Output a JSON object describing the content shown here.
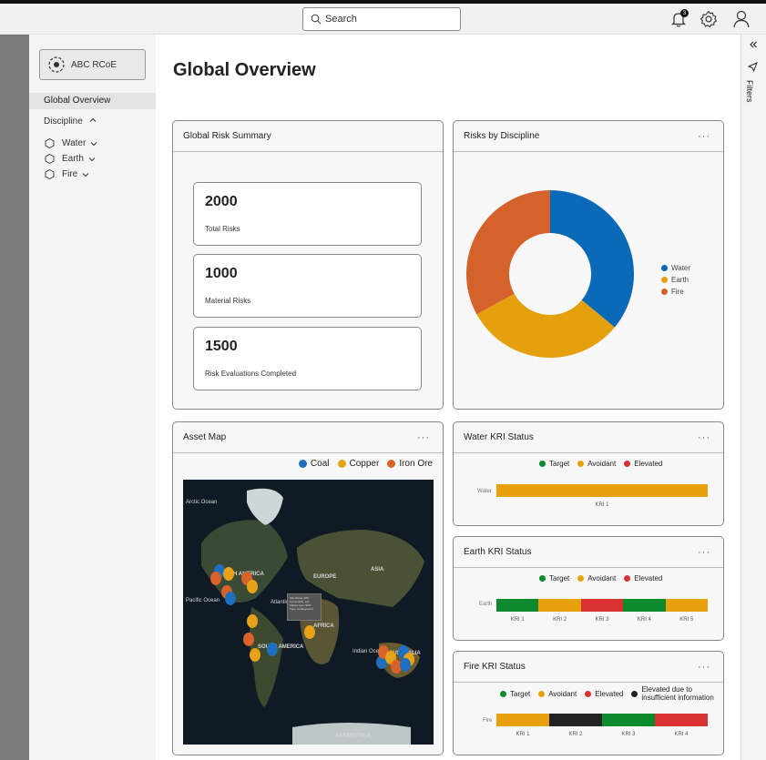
{
  "search": {
    "placeholder": "Search"
  },
  "notifications": {
    "count": "3"
  },
  "brand": {
    "label": "ABC RCoE"
  },
  "sidebar": {
    "active": "Global Overview",
    "discipline_label": "Discipline",
    "items": [
      {
        "label": "Water"
      },
      {
        "label": "Earth"
      },
      {
        "label": "Fire"
      }
    ]
  },
  "page": {
    "title": "Global Overview"
  },
  "right_panel": {
    "filters_label": "Filters"
  },
  "summary": {
    "title": "Global Risk Summary",
    "stats": [
      {
        "value": "2000",
        "label": "Total Risks"
      },
      {
        "value": "1000",
        "label": "Material Risks"
      },
      {
        "value": "1500",
        "label": "Risk Evaluations Completed"
      }
    ]
  },
  "discipline_chart": {
    "title": "Risks by Discipline",
    "menu": "···"
  },
  "chart_data": {
    "type": "pie",
    "categories": [
      "Water",
      "Earth",
      "Fire"
    ],
    "values": [
      36,
      31,
      33
    ],
    "colors": [
      "#0a6ab8",
      "#e5a00d",
      "#d4622a"
    ],
    "legend": "right"
  },
  "asset_map": {
    "title": "Asset Map",
    "menu": "···",
    "legend": [
      {
        "label": "Coal",
        "color": "#1f6fc0"
      },
      {
        "label": "Copper",
        "color": "#e8a219"
      },
      {
        "label": "Iron Ore",
        "color": "#d9612a"
      }
    ],
    "labels": {
      "arctic": "Arctic Ocean",
      "north_america": "NORTH AMERICA",
      "europe": "EUROPE",
      "asia": "ASIA",
      "pacific": "Pacific Ocean",
      "atlantic": "Atlantic Ocean",
      "africa": "AFRICA",
      "south_america": "SOUTH AMERICA",
      "indian": "Indian Ocean",
      "australia": "AUSTRALIA",
      "antarctica": "ANTARCTICA"
    },
    "tooltip": [
      "Site Name: ABC",
      "Commodity: xyz",
      "Mature type: ENF",
      "Type: Underground"
    ]
  },
  "kri_legend": {
    "target": "Target",
    "avoidant": "Avoidant",
    "elevated": "Elevated",
    "insufficient": "Elevated due to insufficient information"
  },
  "kri_colors": {
    "target": "#0e8a2e",
    "avoidant": "#e8a00d",
    "elevated": "#d83232",
    "insufficient": "#222222"
  },
  "water_kri": {
    "title": "Water KRI Status",
    "menu": "···",
    "row": "Water",
    "kris": [
      {
        "label": "KRI 1",
        "status": "avoidant"
      }
    ]
  },
  "earth_kri": {
    "title": "Earth KRI Status",
    "menu": "···",
    "row": "Earth",
    "kris": [
      {
        "label": "KRI 1",
        "status": "target"
      },
      {
        "label": "KRI 2",
        "status": "avoidant"
      },
      {
        "label": "KRI 3",
        "status": "elevated"
      },
      {
        "label": "KRI 4",
        "status": "target"
      },
      {
        "label": "KRI 5",
        "status": "avoidant"
      }
    ]
  },
  "fire_kri": {
    "title": "Fire KRI Status",
    "menu": "···",
    "row": "Fire",
    "kris": [
      {
        "label": "KRI 1",
        "status": "avoidant"
      },
      {
        "label": "KRI 2",
        "status": "insufficient"
      },
      {
        "label": "KRI 3",
        "status": "target"
      },
      {
        "label": "KRI 4",
        "status": "elevated"
      }
    ]
  }
}
